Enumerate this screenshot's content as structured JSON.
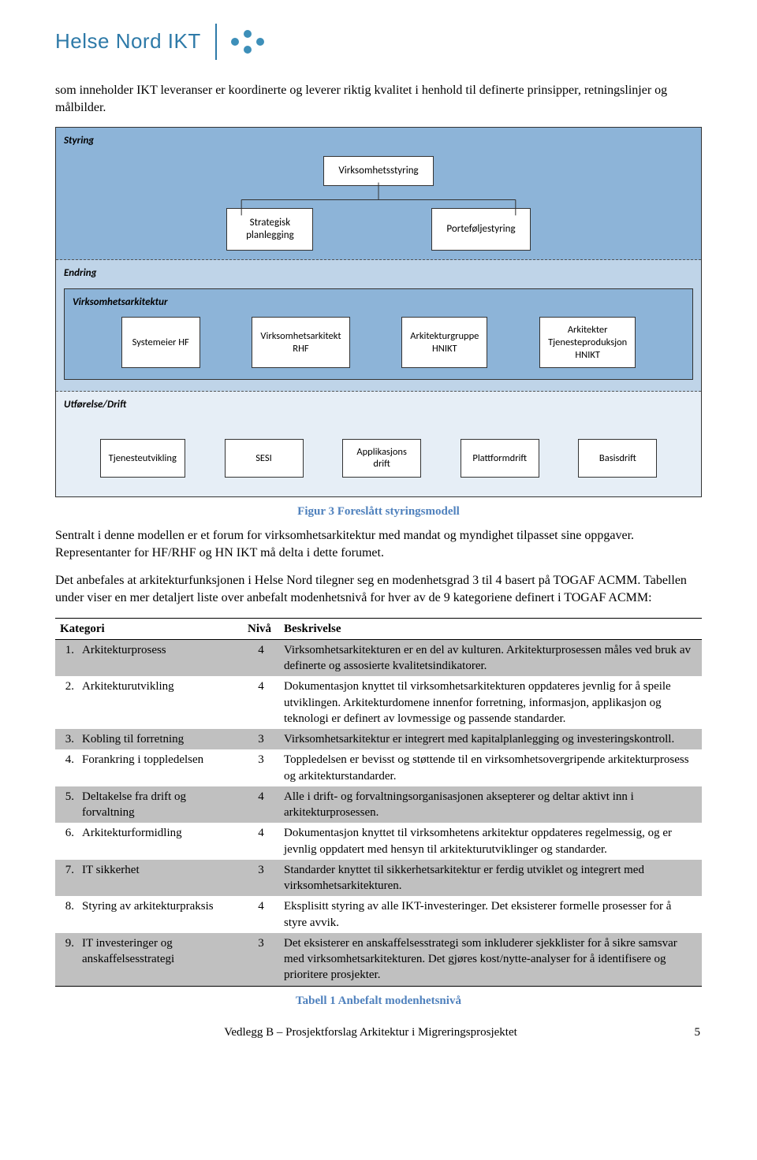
{
  "header": {
    "logo_text_a": "Helse Nord",
    "logo_text_b": "IKT"
  },
  "intro": "som inneholder IKT leveranser er koordinerte og leverer riktig kvalitet i henhold til definerte prinsipper, retningslinjer og målbilder.",
  "diagram": {
    "styring_label": "Styring",
    "virksomhetsstyring": "Virksomhetsstyring",
    "strategisk": "Strategisk\nplanlegging",
    "portefolje": "Porteføljestyring",
    "endring_label": "Endring",
    "va_label": "Virksomhetsarkitektur",
    "va_boxes": [
      "Systemeier HF",
      "Virksomhetsarkitekt\nRHF",
      "Arkitekturgruppe\nHNIKT",
      "Arkitekter\nTjenesteproduksjon\nHNIKT"
    ],
    "utf_label": "Utførelse/Drift",
    "utf_boxes": [
      "Tjenesteutvikling",
      "SESI",
      "Applikasjons\ndrift",
      "Plattformdrift",
      "Basisdrift"
    ]
  },
  "fig_caption": "Figur 3 Foreslått styringsmodell",
  "para2": "Sentralt i denne modellen er et forum for virksomhetsarkitektur med mandat og myndighet tilpasset sine oppgaver. Representanter for HF/RHF og HN IKT må delta i dette forumet.",
  "para3": "Det anbefales at arkitekturfunksjonen i Helse Nord tilegner seg en modenhetsgrad 3 til 4 basert på TOGAF ACMM. Tabellen under viser en mer detaljert liste over anbefalt modenhetsnivå for hver av de 9 kategoriene definert i TOGAF ACMM:",
  "table": {
    "headers": [
      "Kategori",
      "Nivå",
      "Beskrivelse"
    ],
    "rows": [
      {
        "n": "1.",
        "cat": "Arkitekturprosess",
        "niv": "4",
        "desc": "Virksomhetsarkitekturen er en del av kulturen. Arkitekturprosessen måles ved bruk av definerte og assosierte kvalitetsindikatorer.",
        "shade": true
      },
      {
        "n": "2.",
        "cat": "Arkitekturutvikling",
        "niv": "4",
        "desc": "Dokumentasjon knyttet til virksomhetsarkitekturen oppdateres jevnlig for å speile utviklingen. Arkitekturdomene innenfor forretning, informasjon, applikasjon og teknologi er definert av lovmessige og passende standarder.",
        "shade": false
      },
      {
        "n": "3.",
        "cat": "Kobling til forretning",
        "niv": "3",
        "desc": "Virksomhetsarkitektur er integrert med kapitalplanlegging og investeringskontroll.",
        "shade": true
      },
      {
        "n": "4.",
        "cat": "Forankring i toppledelsen",
        "niv": "3",
        "desc": "Toppledelsen er bevisst og støttende til en virksomhetsovergripende arkitekturprosess og arkitekturstandarder.",
        "shade": false
      },
      {
        "n": "5.",
        "cat": "Deltakelse fra drift og forvaltning",
        "niv": "4",
        "desc": "Alle i drift- og forvaltningsorganisasjonen aksepterer og deltar aktivt inn i arkitekturprosessen.",
        "shade": true
      },
      {
        "n": "6.",
        "cat": "Arkitekturformidling",
        "niv": "4",
        "desc": "Dokumentasjon knyttet til virksomhetens arkitektur oppdateres regelmessig, og er jevnlig oppdatert med hensyn til arkitekturutviklinger og standarder.",
        "shade": false
      },
      {
        "n": "7.",
        "cat": "IT sikkerhet",
        "niv": "3",
        "desc": "Standarder knyttet til sikkerhetsarkitektur er ferdig utviklet og integrert med virksomhetsarkitekturen.",
        "shade": true
      },
      {
        "n": "8.",
        "cat": "Styring av arkitekturpraksis",
        "niv": "4",
        "desc": "Eksplisitt styring av alle IKT-investeringer. Det eksisterer formelle prosesser for å styre avvik.",
        "shade": false
      },
      {
        "n": "9.",
        "cat": "IT investeringer og anskaffelsesstrategi",
        "niv": "3",
        "desc": "Det eksisterer en anskaffelsesstrategi som inkluderer sjekklister for å sikre samsvar med virksomhetsarkitekturen. Det gjøres kost/nytte-analyser for å identifisere og prioritere prosjekter.",
        "shade": true
      }
    ]
  },
  "table_caption": "Tabell 1 Anbefalt modenhetsnivå",
  "footer": {
    "text": "Vedlegg B – Prosjektforslag Arkitektur i Migreringsprosjektet",
    "page": "5"
  },
  "colors": {
    "brand": "#2e7aa8",
    "dot": "#3d8fb9",
    "styring_bg": "#8db4d8",
    "endring_bg": "#bfd4e8",
    "utf_bg": "#e6eef6",
    "caption_color": "#4f81bd",
    "shade": "#c0c0c0"
  }
}
